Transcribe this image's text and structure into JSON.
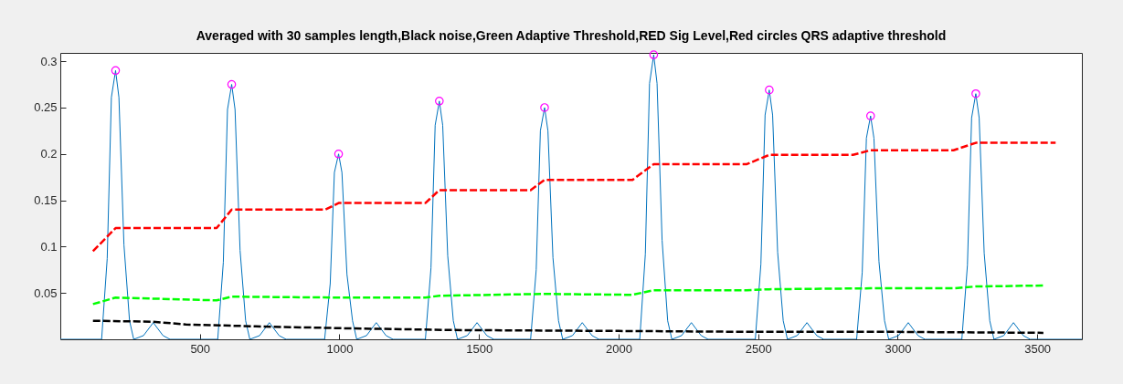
{
  "chart_data": {
    "type": "line",
    "title": "Averaged with 30 samples length,Black noise,Green Adaptive Threshold,RED Sig Level,Red circles QRS adaptive threshold",
    "xlim": [
      0,
      3660
    ],
    "ylim": [
      0,
      0.309
    ],
    "xticks": [
      500,
      1000,
      1500,
      2000,
      2500,
      3000,
      3500
    ],
    "yticks": [
      0.05,
      0.1,
      0.15,
      0.2,
      0.25,
      0.3
    ],
    "grid": false,
    "series": [
      {
        "color": "#0072bd",
        "line_style": "solid",
        "marker": "none",
        "x": [
          0,
          148,
          168,
          183,
          198,
          210,
          228,
          248,
          263,
          298,
          333,
          368,
          393,
          564,
          584,
          599,
          614,
          626,
          644,
          664,
          679,
          714,
          749,
          784,
          809,
          947,
          967,
          982,
          997,
          1009,
          1027,
          1047,
          1062,
          1097,
          1132,
          1167,
          1192,
          1308,
          1328,
          1343,
          1358,
          1370,
          1388,
          1408,
          1423,
          1458,
          1493,
          1528,
          1553,
          1685,
          1705,
          1720,
          1735,
          1747,
          1765,
          1785,
          1800,
          1835,
          1870,
          1905,
          1930,
          2076,
          2096,
          2111,
          2126,
          2138,
          2156,
          2176,
          2191,
          2226,
          2261,
          2296,
          2321,
          2490,
          2510,
          2525,
          2540,
          2552,
          2570,
          2590,
          2605,
          2640,
          2675,
          2710,
          2735,
          2853,
          2873,
          2888,
          2903,
          2915,
          2933,
          2953,
          2968,
          3003,
          3038,
          3073,
          3098,
          3230,
          3250,
          3265,
          3280,
          3292,
          3310,
          3330,
          3345,
          3380,
          3415,
          3450,
          3475,
          3660
        ],
        "values": [
          0,
          0,
          0.087,
          0.261,
          0.29,
          0.261,
          0.102,
          0.02,
          0,
          0.004,
          0.018,
          0.004,
          0,
          0,
          0.083,
          0.248,
          0.275,
          0.248,
          0.096,
          0.02,
          0,
          0.004,
          0.018,
          0.004,
          0,
          0,
          0.06,
          0.18,
          0.2,
          0.18,
          0.07,
          0.02,
          0,
          0.004,
          0.018,
          0.004,
          0,
          0,
          0.077,
          0.231,
          0.257,
          0.231,
          0.09,
          0.02,
          0,
          0.004,
          0.018,
          0.004,
          0,
          0,
          0.075,
          0.225,
          0.25,
          0.225,
          0.088,
          0.02,
          0,
          0.004,
          0.018,
          0.004,
          0,
          0,
          0.092,
          0.276,
          0.307,
          0.276,
          0.107,
          0.02,
          0,
          0.004,
          0.018,
          0.004,
          0,
          0,
          0.081,
          0.242,
          0.269,
          0.242,
          0.094,
          0.02,
          0,
          0.004,
          0.018,
          0.004,
          0,
          0,
          0.072,
          0.217,
          0.241,
          0.217,
          0.084,
          0.02,
          0,
          0.004,
          0.018,
          0.004,
          0,
          0,
          0.08,
          0.239,
          0.265,
          0.239,
          0.093,
          0.02,
          0,
          0.004,
          0.018,
          0.004,
          0,
          0
        ]
      },
      {
        "color": "#ff0000",
        "line_style": "dashed",
        "marker": "none",
        "x": [
          117,
          198,
          560,
          614,
          950,
          997,
          1308,
          1358,
          1685,
          1735,
          2050,
          2126,
          2460,
          2540,
          2840,
          2903,
          3200,
          3280,
          3566
        ],
        "values": [
          0.095,
          0.12,
          0.12,
          0.14,
          0.14,
          0.147,
          0.147,
          0.161,
          0.161,
          0.172,
          0.172,
          0.189,
          0.189,
          0.199,
          0.199,
          0.204,
          0.204,
          0.212,
          0.212
        ]
      },
      {
        "color": "#00ff00",
        "line_style": "dashed",
        "marker": "none",
        "x": [
          117,
          198,
          560,
          614,
          997,
          1308,
          1358,
          1735,
          2050,
          2126,
          2460,
          2540,
          2903,
          3200,
          3280,
          3522
        ],
        "values": [
          0.038,
          0.045,
          0.042,
          0.046,
          0.045,
          0.045,
          0.047,
          0.049,
          0.048,
          0.053,
          0.053,
          0.054,
          0.055,
          0.055,
          0.057,
          0.058
        ]
      },
      {
        "color": "#000000",
        "line_style": "dashed",
        "marker": "none",
        "x": [
          117,
          330,
          450,
          700,
          1000,
          1400,
          2000,
          2500,
          3000,
          3522
        ],
        "values": [
          0.02,
          0.019,
          0.016,
          0.014,
          0.012,
          0.01,
          0.009,
          0.008,
          0.008,
          0.007
        ]
      },
      {
        "type": "scatter",
        "color": "#ff00ff",
        "marker": "circle",
        "x": [
          198,
          614,
          997,
          1358,
          1735,
          2126,
          2540,
          2903,
          3280
        ],
        "values": [
          0.29,
          0.275,
          0.2,
          0.257,
          0.25,
          0.307,
          0.269,
          0.241,
          0.265
        ]
      }
    ]
  }
}
